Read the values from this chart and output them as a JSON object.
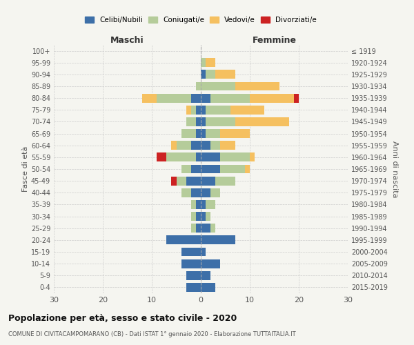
{
  "age_groups": [
    "0-4",
    "5-9",
    "10-14",
    "15-19",
    "20-24",
    "25-29",
    "30-34",
    "35-39",
    "40-44",
    "45-49",
    "50-54",
    "55-59",
    "60-64",
    "65-69",
    "70-74",
    "75-79",
    "80-84",
    "85-89",
    "90-94",
    "95-99",
    "100+"
  ],
  "birth_years": [
    "2015-2019",
    "2010-2014",
    "2005-2009",
    "2000-2004",
    "1995-1999",
    "1990-1994",
    "1985-1989",
    "1980-1984",
    "1975-1979",
    "1970-1974",
    "1965-1969",
    "1960-1964",
    "1955-1959",
    "1950-1954",
    "1945-1949",
    "1940-1944",
    "1935-1939",
    "1930-1934",
    "1925-1929",
    "1920-1924",
    "≤ 1919"
  ],
  "colors": {
    "celibe": "#3d6fa8",
    "coniugato": "#b5cc9a",
    "vedovo": "#f5c060",
    "divorziato": "#cc2222"
  },
  "maschi": {
    "celibe": [
      3,
      3,
      4,
      4,
      7,
      1,
      1,
      1,
      2,
      3,
      2,
      1,
      2,
      1,
      1,
      1,
      2,
      0,
      0,
      0,
      0
    ],
    "coniugato": [
      0,
      0,
      0,
      0,
      0,
      1,
      1,
      1,
      2,
      2,
      2,
      6,
      3,
      3,
      2,
      1,
      7,
      1,
      0,
      0,
      0
    ],
    "vedovo": [
      0,
      0,
      0,
      0,
      0,
      0,
      0,
      0,
      0,
      0,
      0,
      0,
      1,
      0,
      0,
      1,
      3,
      0,
      0,
      0,
      0
    ],
    "divorziato": [
      0,
      0,
      0,
      0,
      0,
      0,
      0,
      0,
      0,
      1,
      0,
      2,
      0,
      0,
      0,
      0,
      0,
      0,
      0,
      0,
      0
    ]
  },
  "femmine": {
    "nubile": [
      3,
      2,
      4,
      1,
      7,
      2,
      1,
      1,
      2,
      3,
      4,
      4,
      2,
      1,
      1,
      1,
      2,
      0,
      1,
      0,
      0
    ],
    "coniugata": [
      0,
      0,
      0,
      0,
      0,
      1,
      1,
      2,
      2,
      4,
      5,
      6,
      2,
      3,
      6,
      5,
      8,
      7,
      2,
      1,
      0
    ],
    "vedova": [
      0,
      0,
      0,
      0,
      0,
      0,
      0,
      0,
      0,
      0,
      1,
      1,
      3,
      6,
      11,
      7,
      9,
      9,
      4,
      2,
      0
    ],
    "divorziata": [
      0,
      0,
      0,
      0,
      0,
      0,
      0,
      0,
      0,
      0,
      0,
      0,
      0,
      0,
      0,
      0,
      1,
      0,
      0,
      0,
      0
    ]
  },
  "xlim": 30,
  "title": "Popolazione per età, sesso e stato civile - 2020",
  "subtitle": "COMUNE DI CIVITACAMPOMARANO (CB) - Dati ISTAT 1° gennaio 2020 - Elaborazione TUTTAITALIA.IT",
  "ylabel_left": "Fasce di età",
  "ylabel_right": "Anni di nascita",
  "xlabel_left": "Maschi",
  "xlabel_right": "Femmine",
  "legend_labels": [
    "Celibi/Nubili",
    "Coniugati/e",
    "Vedovi/e",
    "Divorziati/e"
  ],
  "background_color": "#f5f5f0"
}
